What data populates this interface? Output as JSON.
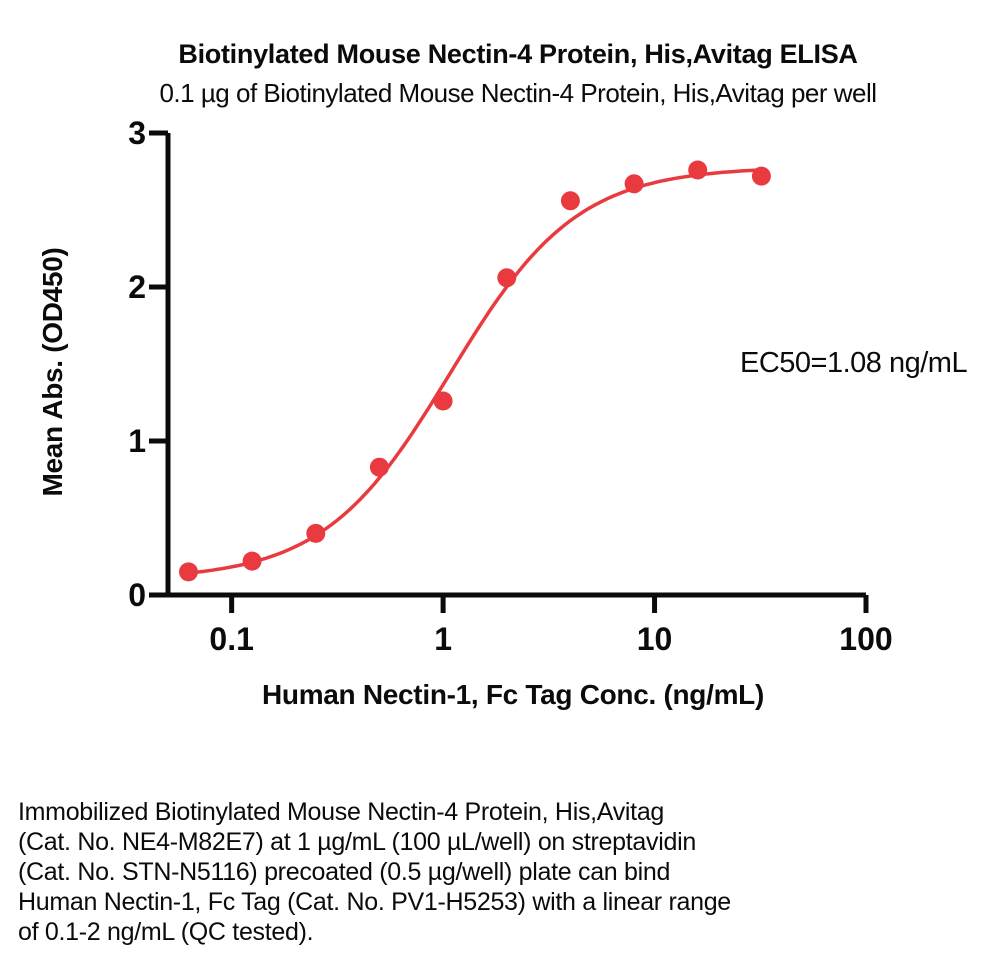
{
  "page": {
    "description_lines": [
      "Immobilized Biotinylated Mouse Nectin-4 Protein, His,Avitag",
      "(Cat. No. NE4-M82E7) at 1 µg/mL (100 µL/well) on streptavidin",
      "(Cat. No. STN-N5116) precoated (0.5 µg/well) plate can bind",
      "Human Nectin-1, Fc Tag (Cat. No. PV1-H5253) with a linear range",
      "of 0.1-2 ng/mL (QC tested)."
    ]
  },
  "chart_data": {
    "type": "scatter",
    "title": "Biotinylated Mouse Nectin-4 Protein, His,Avitag ELISA",
    "subtitle": "0.1 µg of Biotinylated Mouse Nectin-4 Protein, His,Avitag per well",
    "xlabel": "Human Nectin-1, Fc Tag Conc. (ng/mL)",
    "ylabel": "Mean Abs. (OD450)",
    "x_scale": "log10",
    "xlim": [
      0.05,
      100
    ],
    "ylim": [
      0,
      3
    ],
    "x_ticks": [
      0.1,
      1,
      10,
      100
    ],
    "x_tick_labels": [
      "0.1",
      "1",
      "10",
      "100"
    ],
    "y_ticks": [
      0,
      1,
      2,
      3
    ],
    "y_tick_labels": [
      "0",
      "1",
      "2",
      "3"
    ],
    "grid": false,
    "legend": false,
    "annotation": "EC50=1.08 ng/mL",
    "series": [
      {
        "name": "Human Nectin-1, Fc Tag",
        "x": [
          0.0625,
          0.125,
          0.25,
          0.5,
          1,
          2,
          4,
          8,
          16,
          32
        ],
        "y": [
          0.15,
          0.22,
          0.4,
          0.83,
          1.26,
          2.06,
          2.56,
          2.67,
          2.76,
          2.72
        ],
        "color": "#E93B3F"
      }
    ],
    "fit_curve": {
      "model": "4PL",
      "ec50": 1.08,
      "hill": 1.45,
      "bottom": 0.1,
      "top": 2.78
    }
  },
  "colors": {
    "accent_red": "#E93B3F",
    "axis_black": "#0b0b0b"
  }
}
